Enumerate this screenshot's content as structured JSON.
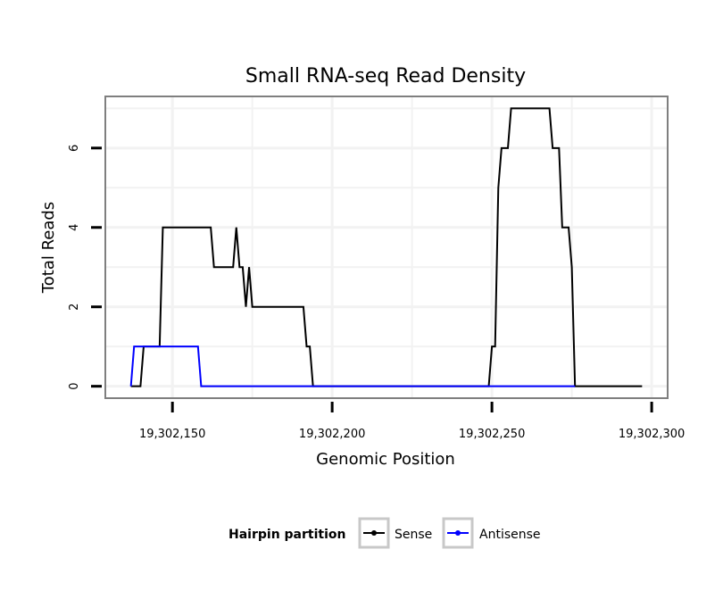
{
  "chart_data": {
    "type": "line",
    "title": "Small RNA-seq Read Density",
    "xlabel": "Genomic Position",
    "ylabel": "Total Reads",
    "xlim": [
      19302129,
      19302305
    ],
    "ylim": [
      -0.3,
      7.3
    ],
    "xticks": [
      19302150,
      19302200,
      19302250,
      19302300
    ],
    "xtick_labels": [
      "19,302,150",
      "19,302,200",
      "19,302,250",
      "19,302,300"
    ],
    "yticks": [
      0,
      2,
      4,
      6
    ],
    "ytick_labels": [
      "0",
      "2",
      "4",
      "6"
    ],
    "grid": true,
    "legend_title": "Hairpin partition",
    "legend_position": "bottom",
    "series": [
      {
        "name": "Sense",
        "color": "#000000",
        "x": [
          19302137,
          19302140,
          19302141,
          19302145,
          19302146,
          19302147,
          19302162,
          19302163,
          19302169,
          19302170,
          19302171,
          19302172,
          19302173,
          19302174,
          19302175,
          19302191,
          19302192,
          19302193,
          19302194,
          19302249,
          19302250,
          19302251,
          19302252,
          19302253,
          19302255,
          19302256,
          19302268,
          19302269,
          19302271,
          19302272,
          19302274,
          19302275,
          19302276,
          19302277,
          19302297
        ],
        "values": [
          0,
          0,
          1,
          1,
          1,
          4,
          4,
          3,
          3,
          4,
          3,
          3,
          2,
          3,
          2,
          2,
          1,
          1,
          0,
          0,
          1,
          1,
          5,
          6,
          6,
          7,
          7,
          6,
          6,
          4,
          4,
          3,
          0,
          0,
          0
        ]
      },
      {
        "name": "Antisense",
        "color": "#0000ff",
        "x": [
          19302137,
          19302138,
          19302146,
          19302147,
          19302158,
          19302159,
          19302276
        ],
        "values": [
          0,
          1,
          1,
          1,
          1,
          0,
          0
        ]
      }
    ]
  }
}
